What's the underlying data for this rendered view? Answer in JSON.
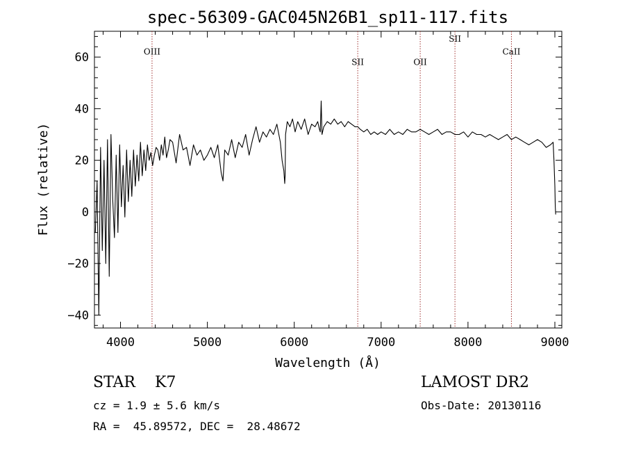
{
  "chart_data": {
    "type": "line",
    "title": "spec-56309-GAC045N26B1_sp11-117.fits",
    "xlabel": "Wavelength (Å)",
    "ylabel": "Flux (relative)",
    "xlim": [
      3700,
      9080
    ],
    "ylim": [
      -45,
      70
    ],
    "xticks": [
      4000,
      5000,
      6000,
      7000,
      8000,
      9000
    ],
    "xtick_labels": [
      "4000",
      "5000",
      "6000",
      "7000",
      "8000",
      "9000"
    ],
    "yticks": [
      -40,
      -20,
      0,
      20,
      40,
      60
    ],
    "ytick_labels": [
      "−40",
      "−20",
      "0",
      "20",
      "40",
      "60"
    ],
    "grid": false,
    "lines": [
      {
        "name": "OIII",
        "x": 4363,
        "label_y": 61
      },
      {
        "name": "SII",
        "x": 6731,
        "label_y": 57
      },
      {
        "name": "OII",
        "x": 7450,
        "label_y": 57
      },
      {
        "name": "SII",
        "x": 7850,
        "label_y": 66
      },
      {
        "name": "CaII",
        "x": 8500,
        "label_y": 61
      }
    ],
    "series": [
      {
        "x": [
          3710,
          3730,
          3750,
          3770,
          3790,
          3810,
          3830,
          3850,
          3870,
          3890,
          3910,
          3930,
          3950,
          3970,
          3990,
          4010,
          4030,
          4050,
          4070,
          4090,
          4110,
          4130,
          4150,
          4170,
          4190,
          4210,
          4230,
          4250,
          4270,
          4290,
          4310,
          4330,
          4350,
          4370,
          4390,
          4410,
          4430,
          4450,
          4470,
          4490,
          4510,
          4530,
          4550,
          4570,
          4600,
          4640,
          4680,
          4720,
          4760,
          4800,
          4840,
          4880,
          4920,
          4960,
          5000,
          5040,
          5080,
          5120,
          5160,
          5180,
          5200,
          5240,
          5280,
          5320,
          5360,
          5400,
          5440,
          5480,
          5520,
          5560,
          5600,
          5640,
          5680,
          5720,
          5760,
          5800,
          5840,
          5860,
          5880,
          5890,
          5895,
          5900,
          5920,
          5950,
          5980,
          6010,
          6040,
          6080,
          6120,
          6160,
          6200,
          6240,
          6270,
          6290,
          6300,
          6310,
          6320,
          6340,
          6380,
          6420,
          6460,
          6500,
          6540,
          6580,
          6620,
          6660,
          6700,
          6731,
          6760,
          6800,
          6840,
          6880,
          6920,
          6960,
          7000,
          7050,
          7100,
          7150,
          7200,
          7250,
          7300,
          7350,
          7400,
          7450,
          7500,
          7550,
          7600,
          7650,
          7700,
          7750,
          7800,
          7850,
          7900,
          7950,
          8000,
          8050,
          8100,
          8150,
          8200,
          8250,
          8300,
          8350,
          8400,
          8450,
          8500,
          8550,
          8600,
          8650,
          8700,
          8750,
          8800,
          8850,
          8900,
          8950,
          8980,
          8990,
          9000,
          9005,
          9010
        ],
        "y": [
          -8,
          12,
          -40,
          25,
          -15,
          20,
          -20,
          28,
          -25,
          30,
          5,
          -10,
          22,
          -8,
          26,
          2,
          18,
          -2,
          24,
          4,
          20,
          6,
          24,
          10,
          22,
          12,
          27,
          14,
          24,
          16,
          26,
          20,
          23,
          18,
          22,
          25,
          24,
          20,
          26,
          22,
          29,
          21,
          24,
          28,
          27,
          19,
          30,
          24,
          25,
          18,
          26,
          22,
          24,
          20,
          22,
          25,
          21,
          26,
          15,
          12,
          24,
          22,
          28,
          21,
          27,
          25,
          30,
          22,
          28,
          33,
          27,
          31,
          29,
          32,
          30,
          34,
          27,
          20,
          16,
          11,
          14,
          30,
          35,
          33,
          36,
          31,
          35,
          32,
          36,
          30,
          34,
          33,
          35,
          32,
          31,
          43,
          30,
          33,
          35,
          34,
          36,
          34,
          35,
          33,
          35,
          34,
          33,
          33,
          32,
          31,
          32,
          30,
          31,
          30,
          31,
          30,
          32,
          30,
          31,
          30,
          32,
          31,
          31,
          32,
          31,
          30,
          31,
          32,
          30,
          31,
          31,
          30,
          30,
          31,
          29,
          31,
          30,
          30,
          29,
          30,
          29,
          28,
          29,
          30,
          28,
          29,
          28,
          27,
          26,
          27,
          28,
          27,
          25,
          26,
          27,
          20,
          10,
          2,
          -1
        ]
      }
    ]
  },
  "info": {
    "class_line": "STAR    K7",
    "survey": "LAMOST DR2",
    "cz": "cz = 1.9 ± 5.6 km/s",
    "obs_date": "Obs-Date: 20130116",
    "radec": "RA =  45.89572, DEC =  28.48672"
  },
  "colors": {
    "line": "#000000",
    "marker": "#a0302e"
  }
}
